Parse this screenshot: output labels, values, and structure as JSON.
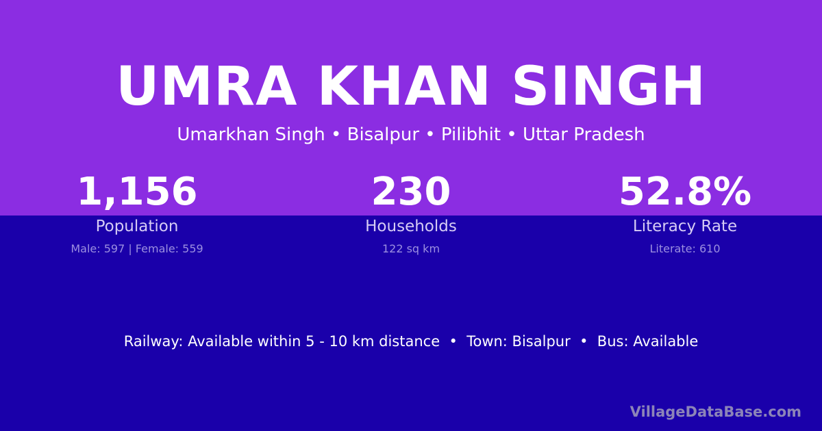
{
  "colors": {
    "top_background": "#8B2DE2",
    "bottom_background": "#1A00AA"
  },
  "title": "UMRA KHAN SINGH",
  "subtitle": "Umarkhan Singh • Bisalpur • Pilibhit • Uttar Pradesh",
  "stats": [
    {
      "value": "1,156",
      "label": "Population",
      "detail": "Male: 597 | Female: 559"
    },
    {
      "value": "230",
      "label": "Households",
      "detail": "122 sq km"
    },
    {
      "value": "52.8%",
      "label": "Literacy Rate",
      "detail": "Literate: 610"
    }
  ],
  "transport": "Railway: Available within 5 - 10 km distance  •  Town: Bisalpur  •  Bus: Available",
  "brand": "VillageDataBase.com"
}
